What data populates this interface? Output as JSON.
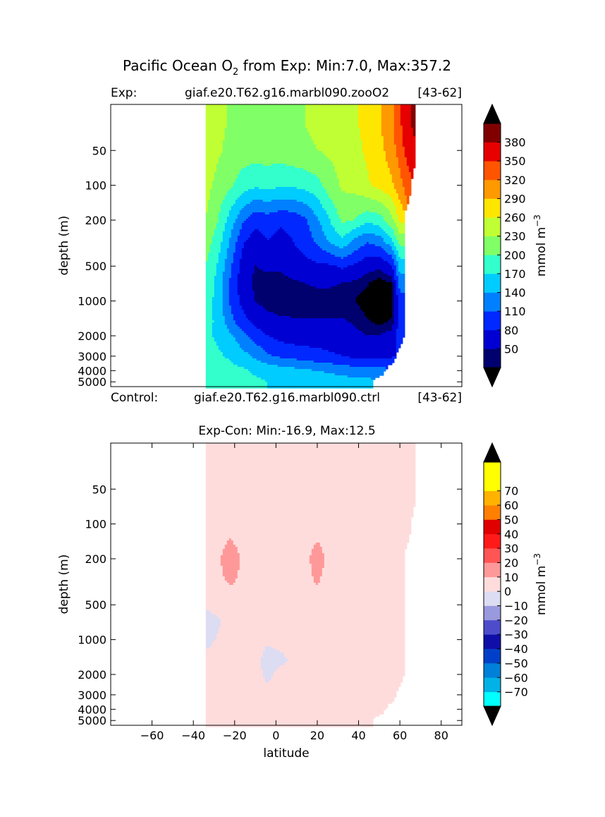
{
  "figure_title": {
    "prefix": "Pacific Ocean O",
    "subscript": "2",
    "suffix": " from Exp: Min:7.0, Max:357.2"
  },
  "chart_data": [
    {
      "type": "heatmap",
      "id": "exp",
      "header_left_label": "Exp:",
      "header_case": "giaf.e20.T62.g16.marbl090.zooO2",
      "header_years": "[43-62]",
      "footer_left_label": "Control:",
      "footer_case": "giaf.e20.T62.g16.marbl090.ctrl",
      "footer_years": "[43-62]",
      "ylabel": "depth (m)",
      "xlim": [
        -80,
        90
      ],
      "ylim": [
        5500,
        20
      ],
      "ytick_values": [
        50,
        100,
        200,
        500,
        1000,
        2000,
        3000,
        4000,
        5000
      ],
      "ytick_labels": [
        "50",
        "100",
        "200",
        "500",
        "1000",
        "2000",
        "3000",
        "4000",
        "5000"
      ],
      "data_lat_range": [
        -34,
        67
      ],
      "colorbar": {
        "levels": [
          20,
          35,
          65,
          95,
          125,
          155,
          185,
          215,
          245,
          275,
          305,
          335,
          365,
          395
        ],
        "colors": [
          "#00006e",
          "#0000d2",
          "#0028ff",
          "#0080ff",
          "#00ccff",
          "#33ffcc",
          "#80ff66",
          "#c0ff33",
          "#ffe600",
          "#ff9900",
          "#ff5500",
          "#e60000",
          "#800000"
        ],
        "tick_labels": [
          "50",
          "80",
          "110",
          "140",
          "170",
          "200",
          "230",
          "260",
          "290",
          "320",
          "350",
          "380"
        ],
        "extend_colors": {
          "under": "#000000",
          "over": "#000000"
        },
        "label": "mmol m",
        "label_superscript": "−3"
      },
      "lat": [
        -34,
        -28,
        -22,
        -16,
        -10,
        -4,
        2,
        8,
        14,
        20,
        26,
        32,
        38,
        44,
        50,
        56,
        60,
        64,
        67
      ],
      "depth": [
        30,
        50,
        100,
        200,
        300,
        500,
        700,
        1000,
        1500,
        2000,
        3000,
        4000,
        5000
      ],
      "values": [
        [
          240,
          225,
          210,
          205,
          205,
          205,
          205,
          210,
          215,
          220,
          225,
          230,
          240,
          255,
          270,
          300,
          330,
          360,
          370
        ],
        [
          235,
          220,
          205,
          200,
          200,
          200,
          200,
          205,
          210,
          215,
          220,
          225,
          235,
          250,
          265,
          290,
          320,
          350,
          360
        ],
        [
          225,
          205,
          190,
          170,
          160,
          165,
          160,
          160,
          165,
          175,
          200,
          220,
          225,
          240,
          255,
          270,
          295,
          320,
          null
        ],
        [
          215,
          185,
          140,
          100,
          75,
          80,
          70,
          75,
          90,
          120,
          155,
          190,
          185,
          165,
          170,
          205,
          250,
          null,
          null
        ],
        [
          200,
          170,
          120,
          70,
          50,
          65,
          55,
          65,
          80,
          100,
          130,
          150,
          120,
          100,
          110,
          150,
          200,
          null,
          null
        ],
        [
          185,
          150,
          100,
          50,
          35,
          40,
          40,
          50,
          55,
          60,
          60,
          70,
          60,
          45,
          40,
          60,
          140,
          null,
          null
        ],
        [
          180,
          145,
          90,
          45,
          30,
          25,
          25,
          30,
          35,
          40,
          40,
          35,
          30,
          22,
          12,
          20,
          110,
          null,
          null
        ],
        [
          175,
          140,
          90,
          55,
          35,
          25,
          22,
          22,
          22,
          22,
          22,
          22,
          20,
          12,
          8,
          12,
          80,
          null,
          null
        ],
        [
          170,
          145,
          105,
          75,
          55,
          45,
          40,
          38,
          38,
          38,
          38,
          38,
          32,
          22,
          15,
          22,
          75,
          null,
          null
        ],
        [
          160,
          150,
          130,
          105,
          80,
          65,
          55,
          50,
          50,
          50,
          50,
          48,
          42,
          35,
          35,
          45,
          85,
          null,
          null
        ],
        [
          170,
          160,
          150,
          135,
          120,
          100,
          90,
          85,
          80,
          75,
          70,
          65,
          58,
          55,
          55,
          65,
          null,
          null,
          null
        ],
        [
          175,
          170,
          165,
          160,
          150,
          145,
          140,
          135,
          130,
          125,
          120,
          115,
          110,
          110,
          110,
          null,
          null,
          null,
          null
        ],
        [
          175,
          172,
          170,
          165,
          160,
          155,
          150,
          148,
          145,
          142,
          140,
          138,
          135,
          135,
          null,
          null,
          null,
          null,
          null
        ]
      ]
    },
    {
      "type": "heatmap",
      "id": "diff",
      "title": "Exp-Con: Min:-16.9, Max:12.5",
      "xlabel": "latitude",
      "ylabel": "depth (m)",
      "xlim": [
        -80,
        90
      ],
      "ylim": [
        5500,
        20
      ],
      "xtick_values": [
        -60,
        -40,
        -20,
        0,
        20,
        40,
        60,
        80
      ],
      "xtick_labels": [
        "−60",
        "−40",
        "−20",
        "0",
        "20",
        "40",
        "60",
        "80"
      ],
      "ytick_values": [
        50,
        100,
        200,
        500,
        1000,
        2000,
        3000,
        4000,
        5000
      ],
      "ytick_labels": [
        "50",
        "100",
        "200",
        "500",
        "1000",
        "2000",
        "3000",
        "4000",
        "5000"
      ],
      "data_lat_range": [
        -34,
        67
      ],
      "colorbar": {
        "levels": [
          -80,
          -75,
          -65,
          -55,
          -45,
          -35,
          -25,
          -15,
          -5,
          5,
          15,
          25,
          35,
          45,
          55,
          65,
          75,
          80
        ],
        "colors": [
          "#00ffff",
          "#00b2e6",
          "#0080d9",
          "#0040c8",
          "#0f0fa8",
          "#4d4dcc",
          "#9999dd",
          "#dcdcf2",
          "#ffdcdc",
          "#ff9999",
          "#ff5555",
          "#ff1a1a",
          "#e00000",
          "#ff7f00",
          "#ffb300",
          "#ffff00",
          "#ffff00"
        ],
        "tick_labels": [
          "−70",
          "−60",
          "−50",
          "−40",
          "−30",
          "−20",
          "−10",
          "0",
          "10",
          "20",
          "30",
          "40",
          "50",
          "60",
          "70"
        ],
        "extend_colors": {
          "under": "#000000",
          "over": "#000000"
        },
        "label": "mmol m",
        "label_superscript": "−3"
      },
      "lat": [
        -34,
        -28,
        -22,
        -16,
        -10,
        -4,
        2,
        8,
        14,
        20,
        26,
        32,
        38,
        44,
        50,
        56,
        60,
        64,
        67
      ],
      "depth": [
        30,
        50,
        100,
        200,
        300,
        500,
        700,
        1000,
        1500,
        2000,
        3000,
        4000,
        5000
      ],
      "values": [
        [
          1,
          1,
          -1,
          -1,
          -1,
          -1,
          1,
          -1,
          -1,
          -1,
          -1,
          1,
          1,
          1,
          1,
          1,
          1,
          1,
          1
        ],
        [
          1,
          1,
          -1,
          -1,
          -1,
          -1,
          1,
          1,
          1,
          1,
          1,
          1,
          1,
          1,
          1,
          1,
          1,
          1,
          1
        ],
        [
          1,
          2,
          2,
          1,
          -1,
          -1,
          1,
          2,
          2,
          2,
          2,
          1,
          -1,
          -1,
          -1,
          -1,
          -1,
          -1,
          null
        ],
        [
          1,
          4,
          9,
          4,
          1,
          -1,
          4,
          2,
          3,
          8,
          3,
          1,
          -1,
          -1,
          -1,
          -1,
          -1,
          null,
          null
        ],
        [
          1,
          3,
          7,
          3,
          1,
          -1,
          2,
          2,
          3,
          6,
          2,
          1,
          -1,
          -1,
          -1,
          -1,
          -1,
          null,
          null
        ],
        [
          -2,
          -1,
          -1,
          -1,
          -1,
          -1,
          1,
          2,
          2,
          2,
          1,
          -1,
          -1,
          -1,
          -1,
          -1,
          -1,
          null,
          null
        ],
        [
          -12,
          -6,
          -2,
          -1,
          -1,
          -1,
          -1,
          1,
          2,
          1,
          -1,
          -1,
          -1,
          -1,
          -1,
          -1,
          -1,
          null,
          null
        ],
        [
          -8,
          -4,
          -2,
          -1,
          -1,
          -3,
          -1,
          -1,
          1,
          1,
          -1,
          -1,
          -1,
          -1,
          -1,
          -1,
          -1,
          null,
          null
        ],
        [
          -2,
          -1,
          -1,
          -1,
          -1,
          -10,
          -8,
          -3,
          -1,
          1,
          -1,
          -1,
          -1,
          -1,
          -1,
          -1,
          -1,
          null,
          null
        ],
        [
          1,
          1,
          -1,
          -1,
          -1,
          -8,
          -1,
          -1,
          -1,
          2,
          -1,
          -1,
          -1,
          -1,
          -1,
          -1,
          -1,
          null,
          null
        ],
        [
          2,
          2,
          2,
          1,
          -1,
          -1,
          -1,
          -1,
          -1,
          2,
          1,
          -1,
          -1,
          -1,
          -1,
          -1,
          null,
          null,
          null
        ],
        [
          -1,
          1,
          2,
          2,
          1,
          -1,
          -1,
          -1,
          1,
          2,
          2,
          1,
          -1,
          -1,
          -1,
          null,
          null,
          null,
          null
        ],
        [
          -1,
          1,
          2,
          2,
          1,
          1,
          1,
          1,
          2,
          2,
          2,
          2,
          1,
          1,
          null,
          null,
          null,
          null,
          null
        ]
      ]
    }
  ]
}
